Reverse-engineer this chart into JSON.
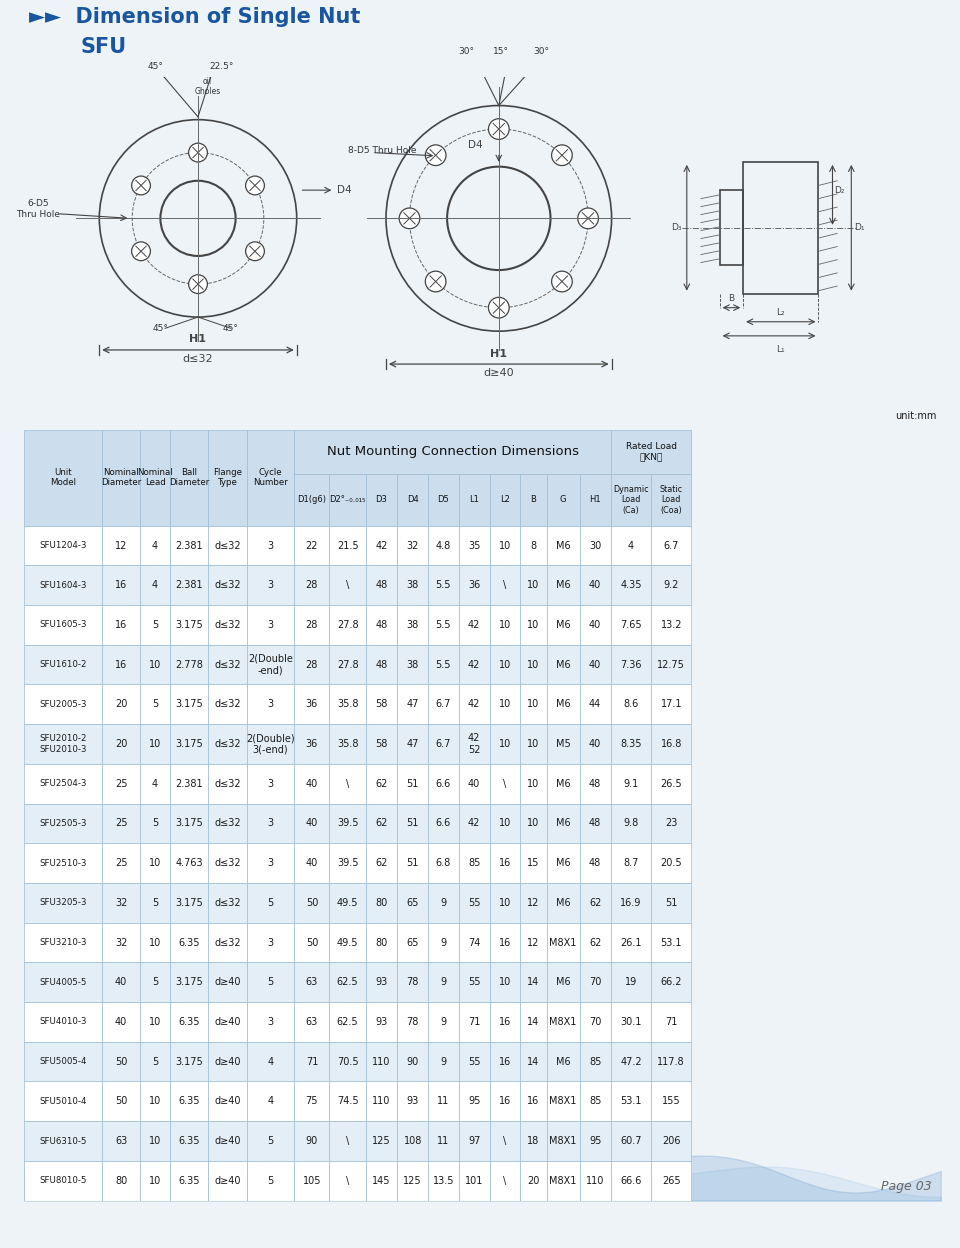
{
  "title_arrow": "►►",
  "title_main": "Dimension of Single Nut",
  "title_sub": "SFU",
  "title_color": "#1a56a0",
  "unit_text": "unit:mm",
  "page_text": "Page 03",
  "table_header_main": "Nut Mounting Connection Dimensions",
  "col_label_texts": [
    "Unit\nModel",
    "Nominal\nDiameter",
    "Nominal\nLead",
    "Ball\nDiameter",
    "Flange\nType",
    "Cycle\nNumber"
  ],
  "sub_labels": [
    "D1(g6)",
    "D2°₋₀.₀₁₅",
    "D3",
    "D4",
    "D5",
    "L1",
    "L2",
    "B",
    "G",
    "H1"
  ],
  "rl_sub": [
    "Dynamic\nLoad\n(Ca)",
    "Static\nLoad\n(Coa)"
  ],
  "rows": [
    [
      "SFU1204-3",
      "12",
      "4",
      "2.381",
      "d≤32",
      "3",
      "22",
      "21.5",
      "42",
      "32",
      "4.8",
      "35",
      "10",
      "8",
      "M6",
      "30",
      "4",
      "6.7"
    ],
    [
      "SFU1604-3",
      "16",
      "4",
      "2.381",
      "d≤32",
      "3",
      "28",
      "\\",
      "48",
      "38",
      "5.5",
      "36",
      "\\",
      "10",
      "M6",
      "40",
      "4.35",
      "9.2"
    ],
    [
      "SFU1605-3",
      "16",
      "5",
      "3.175",
      "d≤32",
      "3",
      "28",
      "27.8",
      "48",
      "38",
      "5.5",
      "42",
      "10",
      "10",
      "M6",
      "40",
      "7.65",
      "13.2"
    ],
    [
      "SFU1610-2",
      "16",
      "10",
      "2.778",
      "d≤32",
      "2(Double\n-end)",
      "28",
      "27.8",
      "48",
      "38",
      "5.5",
      "42",
      "10",
      "10",
      "M6",
      "40",
      "7.36",
      "12.75"
    ],
    [
      "SFU2005-3",
      "20",
      "5",
      "3.175",
      "d≤32",
      "3",
      "36",
      "35.8",
      "58",
      "47",
      "6.7",
      "42",
      "10",
      "10",
      "M6",
      "44",
      "8.6",
      "17.1"
    ],
    [
      "SFU2010-2\nSFU2010-3",
      "20",
      "10",
      "3.175",
      "d≤32",
      "2(Double)\n3(-end)",
      "36",
      "35.8",
      "58",
      "47",
      "6.7",
      "42\n52",
      "10",
      "10",
      "M5",
      "40",
      "8.35",
      "16.8"
    ],
    [
      "SFU2504-3",
      "25",
      "4",
      "2.381",
      "d≤32",
      "3",
      "40",
      "\\",
      "62",
      "51",
      "6.6",
      "40",
      "\\",
      "10",
      "M6",
      "48",
      "9.1",
      "26.5"
    ],
    [
      "SFU2505-3",
      "25",
      "5",
      "3.175",
      "d≤32",
      "3",
      "40",
      "39.5",
      "62",
      "51",
      "6.6",
      "42",
      "10",
      "10",
      "M6",
      "48",
      "9.8",
      "23"
    ],
    [
      "SFU2510-3",
      "25",
      "10",
      "4.763",
      "d≤32",
      "3",
      "40",
      "39.5",
      "62",
      "51",
      "6.8",
      "85",
      "16",
      "15",
      "M6",
      "48",
      "8.7",
      "20.5"
    ],
    [
      "SFU3205-3",
      "32",
      "5",
      "3.175",
      "d≤32",
      "5",
      "50",
      "49.5",
      "80",
      "65",
      "9",
      "55",
      "10",
      "12",
      "M6",
      "62",
      "16.9",
      "51"
    ],
    [
      "SFU3210-3",
      "32",
      "10",
      "6.35",
      "d≤32",
      "3",
      "50",
      "49.5",
      "80",
      "65",
      "9",
      "74",
      "16",
      "12",
      "M8X1",
      "62",
      "26.1",
      "53.1"
    ],
    [
      "SFU4005-5",
      "40",
      "5",
      "3.175",
      "d≥40",
      "5",
      "63",
      "62.5",
      "93",
      "78",
      "9",
      "55",
      "10",
      "14",
      "M6",
      "70",
      "19",
      "66.2"
    ],
    [
      "SFU4010-3",
      "40",
      "10",
      "6.35",
      "d≥40",
      "3",
      "63",
      "62.5",
      "93",
      "78",
      "9",
      "71",
      "16",
      "14",
      "M8X1",
      "70",
      "30.1",
      "71"
    ],
    [
      "SFU5005-4",
      "50",
      "5",
      "3.175",
      "d≥40",
      "4",
      "71",
      "70.5",
      "110",
      "90",
      "9",
      "55",
      "16",
      "14",
      "M6",
      "85",
      "47.2",
      "117.8"
    ],
    [
      "SFU5010-4",
      "50",
      "10",
      "6.35",
      "d≥40",
      "4",
      "75",
      "74.5",
      "110",
      "93",
      "11",
      "95",
      "16",
      "16",
      "M8X1",
      "85",
      "53.1",
      "155"
    ],
    [
      "SFU6310-5",
      "63",
      "10",
      "6.35",
      "d≥40",
      "5",
      "90",
      "\\",
      "125",
      "108",
      "11",
      "97",
      "\\",
      "18",
      "M8X1",
      "95",
      "60.7",
      "206"
    ],
    [
      "SFU8010-5",
      "80",
      "10",
      "6.35",
      "d≥40",
      "5",
      "105",
      "\\",
      "145",
      "125",
      "13.5",
      "101",
      "\\",
      "20",
      "M8X1",
      "110",
      "66.6",
      "265"
    ]
  ],
  "bg_color": "#eef3f8",
  "table_header_bg": "#ccdded",
  "row_even_bg": "#ffffff",
  "row_odd_bg": "#e4eef6",
  "border_color": "#9bbdd4",
  "text_color_dark": "#1a1a1a",
  "header_text_color": "#111111",
  "col_widths": [
    8.5,
    4.2,
    3.2,
    4.2,
    4.2,
    5.2,
    3.8,
    4.0,
    3.4,
    3.4,
    3.3,
    3.4,
    3.3,
    2.9,
    3.6,
    3.4,
    4.4,
    4.4
  ],
  "diag_line_color": "#444444",
  "diag_thin_color": "#666666"
}
